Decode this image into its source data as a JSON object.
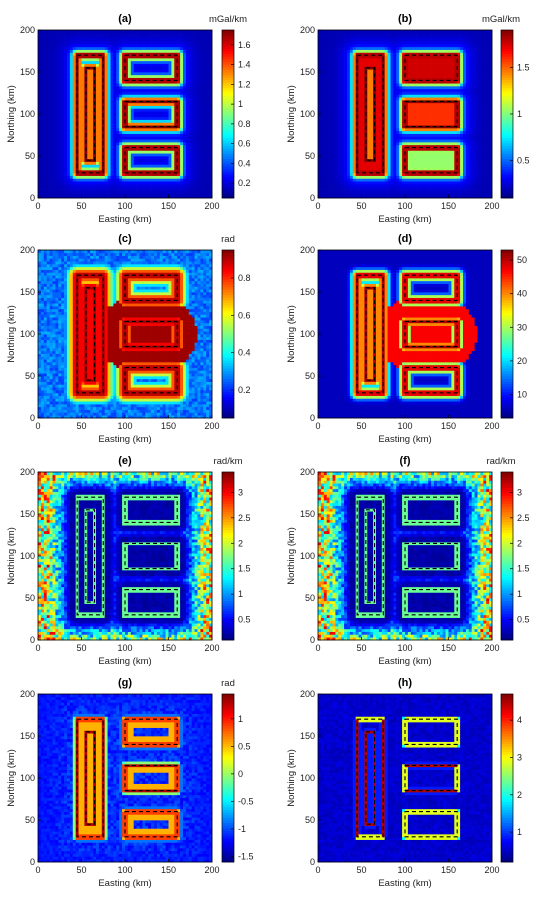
{
  "figure": {
    "xlabel": "Easting (km)",
    "ylabel": "Northing (km)",
    "x_ticks": [
      "0",
      "50",
      "100",
      "150",
      "200"
    ],
    "y_ticks": [
      "0",
      "50",
      "100",
      "150",
      "200"
    ]
  },
  "chart_data": [
    {
      "type": "heatmap",
      "title": "(a)",
      "unit": "mGal/km",
      "cmap": "jet",
      "colorbar": {
        "min": 0.05,
        "max": 1.75,
        "ticks": [
          0.2,
          0.4,
          0.6,
          0.8,
          1,
          1.2,
          1.4,
          1.6
        ],
        "labels": [
          "0.2",
          "0.4",
          "0.6",
          "0.8",
          "1",
          "1.2",
          "1.4",
          "1.6"
        ]
      },
      "xlim": [
        0,
        200
      ],
      "ylim": [
        0,
        200
      ],
      "style": "edge_gradient"
    },
    {
      "type": "heatmap",
      "title": "(b)",
      "unit": "mGal/km",
      "cmap": "jet",
      "colorbar": {
        "min": 0.1,
        "max": 1.9,
        "ticks": [
          0.5,
          1,
          1.5
        ],
        "labels": [
          "0.5",
          "1",
          "1.5"
        ]
      },
      "xlim": [
        0,
        200
      ],
      "ylim": [
        0,
        200
      ],
      "style": "total_gradient"
    },
    {
      "type": "heatmap",
      "title": "(c)",
      "unit": "rad",
      "cmap": "jet",
      "colorbar": {
        "min": 0.05,
        "max": 0.95,
        "ticks": [
          0.2,
          0.4,
          0.6,
          0.8
        ],
        "labels": [
          "0.2",
          "0.4",
          "0.6",
          "0.8"
        ]
      },
      "xlim": [
        0,
        200
      ],
      "ylim": [
        0,
        200
      ],
      "style": "tilt_wide"
    },
    {
      "type": "heatmap",
      "title": "(d)",
      "unit": "",
      "cmap": "jet",
      "colorbar": {
        "min": 3,
        "max": 53,
        "ticks": [
          10,
          20,
          30,
          40,
          50
        ],
        "labels": [
          "10",
          "20",
          "30",
          "40",
          "50"
        ]
      },
      "xlim": [
        0,
        200
      ],
      "ylim": [
        0,
        200
      ],
      "style": "tilt_narrow"
    },
    {
      "type": "heatmap",
      "title": "(e)",
      "unit": "rad/km",
      "cmap": "jet",
      "colorbar": {
        "min": 0.1,
        "max": 3.4,
        "ticks": [
          0.5,
          1,
          1.5,
          2,
          2.5,
          3
        ],
        "labels": [
          "0.5",
          "1",
          "1.5",
          "2",
          "2.5",
          "3"
        ]
      },
      "xlim": [
        0,
        200
      ],
      "ylim": [
        0,
        200
      ],
      "style": "noisy"
    },
    {
      "type": "heatmap",
      "title": "(f)",
      "unit": "rad/km",
      "cmap": "jet",
      "colorbar": {
        "min": 0.1,
        "max": 3.4,
        "ticks": [
          0.5,
          1,
          1.5,
          2,
          2.5,
          3
        ],
        "labels": [
          "0.5",
          "1",
          "1.5",
          "2",
          "2.5",
          "3"
        ]
      },
      "xlim": [
        0,
        200
      ],
      "ylim": [
        0,
        200
      ],
      "style": "noisy"
    },
    {
      "type": "heatmap",
      "title": "(g)",
      "unit": "rad",
      "cmap": "jet",
      "colorbar": {
        "min": -1.6,
        "max": 1.45,
        "ticks": [
          -1.5,
          -1,
          -0.5,
          0,
          0.5,
          1
        ],
        "labels": [
          "-1.5",
          "-1",
          "-0.5",
          "0",
          "0.5",
          "1"
        ]
      },
      "xlim": [
        0,
        200
      ],
      "ylim": [
        0,
        200
      ],
      "style": "theta"
    },
    {
      "type": "heatmap",
      "title": "(h)",
      "unit": "",
      "cmap": "jet",
      "colorbar": {
        "min": 0.2,
        "max": 4.7,
        "ticks": [
          1,
          2,
          3,
          4
        ],
        "labels": [
          "1",
          "2",
          "3",
          "4"
        ]
      },
      "xlim": [
        0,
        200
      ],
      "ylim": [
        0,
        200
      ],
      "style": "sharp"
    }
  ],
  "bodies": [
    {
      "x": [
        45,
        75
      ],
      "y": [
        30,
        170
      ]
    },
    {
      "x": [
        55,
        65
      ],
      "y": [
        45,
        155
      ]
    },
    {
      "x": [
        100,
        160
      ],
      "y": [
        140,
        170
      ]
    },
    {
      "x": [
        100,
        160
      ],
      "y": [
        85,
        115
      ]
    },
    {
      "x": [
        100,
        160
      ],
      "y": [
        30,
        60
      ]
    }
  ]
}
